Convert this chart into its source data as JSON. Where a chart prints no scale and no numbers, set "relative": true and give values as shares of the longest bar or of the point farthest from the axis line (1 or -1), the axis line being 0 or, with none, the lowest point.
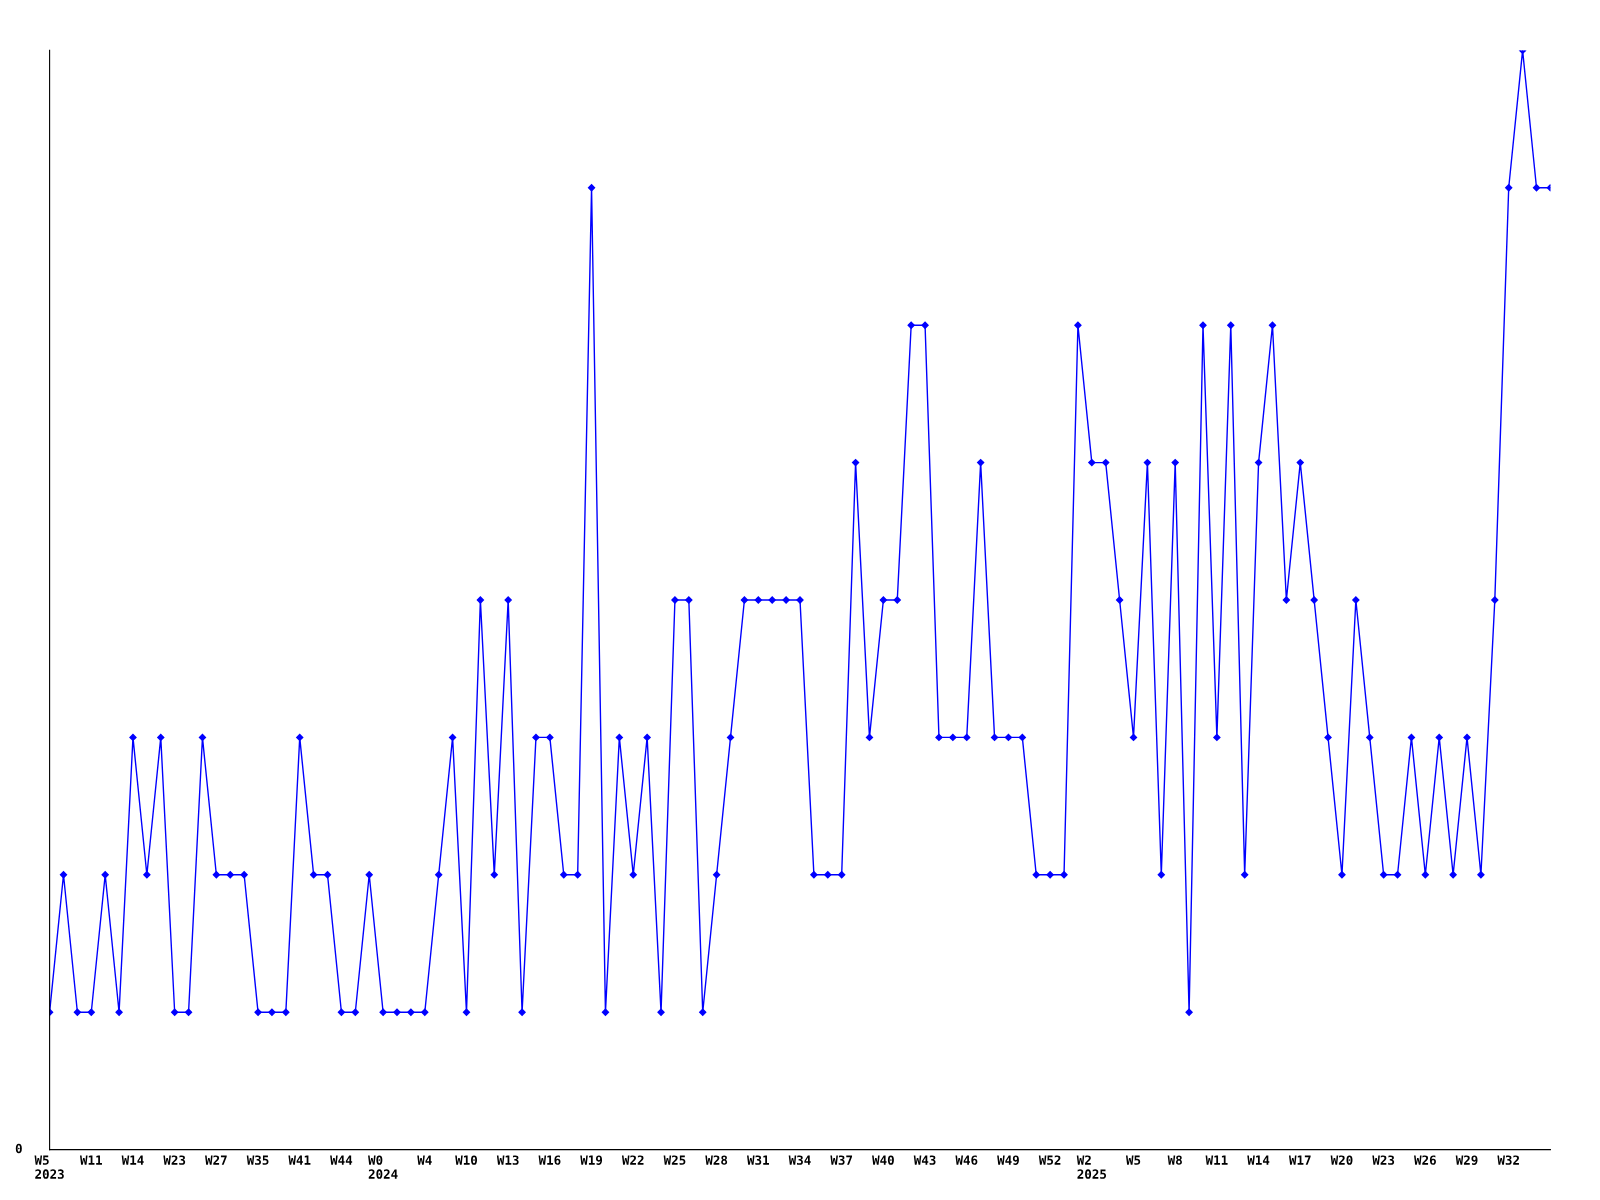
{
  "chart_data": {
    "type": "line",
    "relative": true,
    "color": "#0000ff",
    "marker": "diamond",
    "grid": false,
    "legend": false,
    "categories": [
      "W5\n2023",
      null,
      null,
      "W11",
      null,
      null,
      "W14",
      null,
      null,
      "W23",
      null,
      null,
      "W27",
      null,
      null,
      "W35",
      null,
      null,
      "W41",
      null,
      null,
      "W44",
      null,
      null,
      "W0\n2024",
      null,
      null,
      "W4",
      null,
      null,
      "W10",
      null,
      null,
      "W13",
      null,
      null,
      "W16",
      null,
      null,
      "W19",
      null,
      null,
      "W22",
      null,
      null,
      "W25",
      null,
      null,
      "W28",
      null,
      null,
      "W31",
      null,
      null,
      "W34",
      null,
      null,
      "W37",
      null,
      null,
      "W40",
      null,
      null,
      "W43",
      null,
      null,
      "W46",
      null,
      null,
      "W49",
      null,
      null,
      "W52",
      null,
      null,
      "W2\n2025",
      null,
      null,
      "W5",
      null,
      null,
      "W8",
      null,
      null,
      "W11",
      null,
      null,
      "W14",
      null,
      null,
      "W17",
      null,
      null,
      "W20",
      null,
      null,
      "W23",
      null,
      null,
      "W26",
      null,
      null,
      "W29",
      null,
      null,
      "W32",
      null,
      null,
      null
    ],
    "values": [
      0.125,
      0.25,
      0.125,
      0.125,
      0.25,
      0.125,
      0.375,
      0.25,
      0.375,
      0.125,
      0.125,
      0.375,
      0.25,
      0.25,
      0.25,
      0.125,
      0.125,
      0.125,
      0.375,
      0.25,
      0.25,
      0.125,
      0.125,
      0.25,
      0.125,
      0.125,
      0.125,
      0.125,
      0.25,
      0.375,
      0.125,
      0.5,
      0.25,
      0.5,
      0.125,
      0.375,
      0.375,
      0.25,
      0.25,
      0.875,
      0.125,
      0.375,
      0.25,
      0.375,
      0.125,
      0.5,
      0.5,
      0.125,
      0.25,
      0.375,
      0.5,
      0.5,
      0.5,
      0.5,
      0.5,
      0.25,
      0.25,
      0.25,
      0.625,
      0.375,
      0.5,
      0.5,
      0.75,
      0.75,
      0.375,
      0.375,
      0.375,
      0.625,
      0.375,
      0.375,
      0.375,
      0.25,
      0.25,
      0.25,
      0.75,
      0.625,
      0.625,
      0.5,
      0.375,
      0.625,
      0.25,
      0.625,
      0.125,
      0.75,
      0.375,
      0.75,
      0.25,
      0.625,
      0.75,
      0.5,
      0.625,
      0.5,
      0.375,
      0.25,
      0.5,
      0.375,
      0.25,
      0.25,
      0.375,
      0.25,
      0.375,
      0.25,
      0.375,
      0.25,
      0.5,
      0.875,
      1,
      0.875,
      0.875
    ],
    "annotations": [
      "0"
    ]
  }
}
